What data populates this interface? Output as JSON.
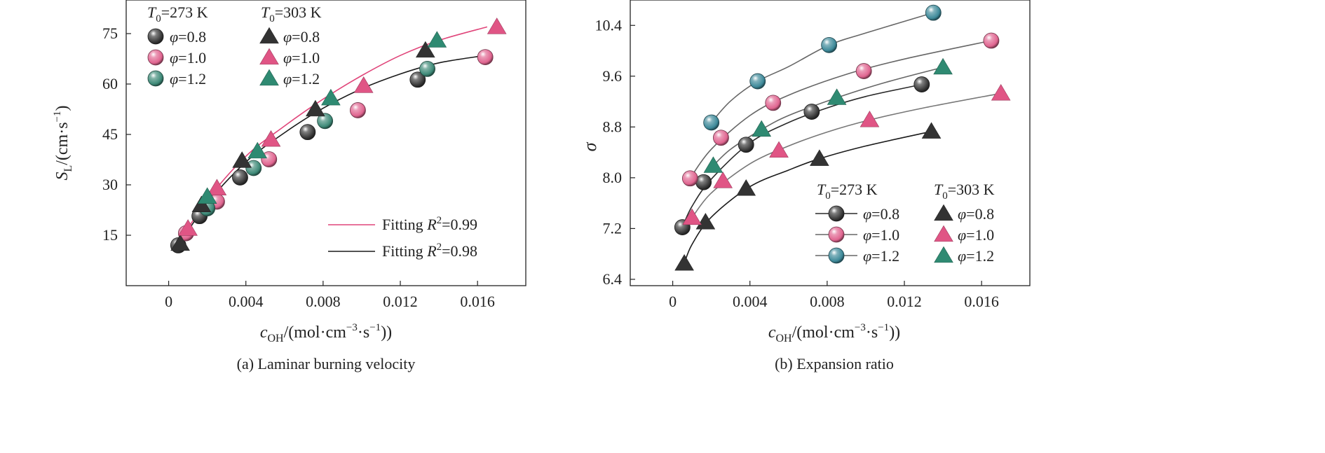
{
  "chart_data": [
    {
      "type": "scatter",
      "caption": "(a) Laminar burning velocity",
      "xlabel": {
        "sym": "c",
        "sub": "OH",
        "unit": "/(mol·cm",
        "e1": "−3",
        "mid": "·s",
        "e2": "−1",
        "end": "))"
      },
      "ylabel": {
        "sym": "S",
        "sub": "L",
        "unit": "/(cm·s",
        "e1": "−1",
        "end": ")"
      },
      "xlim": [
        -0.0022,
        0.0185
      ],
      "ylim": [
        0,
        85
      ],
      "xticks": [
        0,
        0.004,
        0.008,
        0.012,
        0.016
      ],
      "xtick_labels": [
        "0",
        "0.004",
        "0.008",
        "0.012",
        "0.016"
      ],
      "yticks": [
        15,
        30,
        45,
        60,
        75
      ],
      "ytick_labels": [
        "15",
        "30",
        "45",
        "60",
        "75"
      ],
      "legend_headers": [
        "273 K",
        "303 K"
      ],
      "legend_T_sym": "T",
      "legend_T_sub": "0",
      "legend_phi_sym": "φ",
      "series": [
        {
          "name": "=0.8",
          "T0": "273 K",
          "marker": "sphere",
          "color": "#3a3a3a",
          "x": [
            0.0005,
            0.0016,
            0.0037,
            0.0072,
            0.0129
          ],
          "y": [
            12,
            20.7,
            32.2,
            45.7,
            61.3
          ]
        },
        {
          "name": "=1.0",
          "T0": "273 K",
          "marker": "sphere",
          "color": "#e06590",
          "x": [
            0.0009,
            0.0025,
            0.0052,
            0.0098,
            0.0164
          ],
          "y": [
            15.6,
            25,
            37.6,
            52.2,
            68
          ]
        },
        {
          "name": "=1.2",
          "T0": "273 K",
          "marker": "sphere",
          "color": "#3e8a78",
          "x": [
            0.002,
            0.0044,
            0.0081,
            0.0134
          ],
          "y": [
            23,
            35,
            49,
            64.5
          ]
        },
        {
          "name": "=0.8",
          "T0": "303 K",
          "marker": "triangle",
          "color": "#333333",
          "x": [
            0.0006,
            0.0017,
            0.0038,
            0.0076,
            0.0133
          ],
          "y": [
            12.5,
            24,
            37.2,
            52.5,
            70
          ]
        },
        {
          "name": "=1.0",
          "T0": "303 K",
          "marker": "triangle",
          "color": "#e05585",
          "x": [
            0.001,
            0.0025,
            0.0053,
            0.0101,
            0.017
          ],
          "y": [
            17,
            29,
            43.5,
            59.5,
            77
          ]
        },
        {
          "name": "=1.2",
          "T0": "303 K",
          "marker": "triangle",
          "color": "#2f8a72",
          "x": [
            0.002,
            0.0046,
            0.0084,
            0.0139
          ],
          "y": [
            26.5,
            40,
            55.8,
            73
          ]
        }
      ],
      "fits": [
        {
          "label_pre": "Fitting ",
          "label_sym": "R",
          "label_sup": "2",
          "label_val": "=0.99",
          "color": "#e0457a",
          "x": [
            0.0005,
            0.002,
            0.004,
            0.006,
            0.008,
            0.01,
            0.012,
            0.014,
            0.0165
          ],
          "y": [
            12.5,
            25.5,
            38.5,
            47.5,
            55.5,
            62.5,
            68.5,
            73,
            77
          ]
        },
        {
          "label_pre": "Fitting ",
          "label_sym": "R",
          "label_sup": "2",
          "label_val": "=0.98",
          "color": "#1a1a1a",
          "x": [
            0.0005,
            0.002,
            0.004,
            0.006,
            0.008,
            0.01,
            0.012,
            0.014,
            0.0164
          ],
          "y": [
            11.8,
            24.5,
            36.8,
            45.5,
            52.8,
            58.6,
            63,
            66.3,
            68.5
          ]
        }
      ]
    },
    {
      "type": "scatter",
      "caption": "(b) Expansion ratio",
      "xlabel": {
        "sym": "c",
        "sub": "OH",
        "unit": "/(mol·cm",
        "e1": "−3",
        "mid": "·s",
        "e2": "−1",
        "end": "))"
      },
      "ylabel": {
        "sym": "σ"
      },
      "xlim": [
        -0.0022,
        0.0185
      ],
      "ylim": [
        6.3,
        10.8
      ],
      "xticks": [
        0,
        0.004,
        0.008,
        0.012,
        0.016
      ],
      "xtick_labels": [
        "0",
        "0.004",
        "0.008",
        "0.012",
        "0.016"
      ],
      "yticks": [
        6.4,
        7.2,
        8.0,
        8.8,
        9.6,
        10.4
      ],
      "ytick_labels": [
        "6.4",
        "7.2",
        "8.0",
        "8.8",
        "9.6",
        "10.4"
      ],
      "legend_headers": [
        "273 K",
        "303 K"
      ],
      "legend_T_sym": "T",
      "legend_T_sub": "0",
      "legend_phi_sym": "φ",
      "series": [
        {
          "name": "=0.8",
          "T0": "273 K",
          "marker": "sphere",
          "color": "#3a3a3a",
          "x": [
            0.0005,
            0.0016,
            0.0038,
            0.0072,
            0.0129
          ],
          "y": [
            7.22,
            7.93,
            8.52,
            9.04,
            9.47
          ]
        },
        {
          "name": "=1.0",
          "T0": "273 K",
          "marker": "sphere",
          "color": "#e06590",
          "x": [
            0.0009,
            0.0025,
            0.0052,
            0.0099,
            0.0165
          ],
          "y": [
            7.99,
            8.63,
            9.18,
            9.68,
            10.16
          ]
        },
        {
          "name": "=1.2",
          "T0": "273 K",
          "marker": "sphere",
          "color": "#3e8a9a",
          "x": [
            0.002,
            0.0044,
            0.0081,
            0.0135
          ],
          "y": [
            8.87,
            9.52,
            10.09,
            10.6
          ]
        },
        {
          "name": "=0.8",
          "T0": "303 K",
          "marker": "triangle",
          "color": "#333333",
          "x": [
            0.0006,
            0.0017,
            0.0038,
            0.0076,
            0.0134
          ],
          "y": [
            6.65,
            7.3,
            7.83,
            8.3,
            8.73
          ]
        },
        {
          "name": "=1.0",
          "T0": "303 K",
          "marker": "triangle",
          "color": "#e05585",
          "x": [
            0.001,
            0.0026,
            0.0055,
            0.0102,
            0.017
          ],
          "y": [
            7.37,
            7.95,
            8.43,
            8.91,
            9.33
          ]
        },
        {
          "name": "=1.2",
          "T0": "303 K",
          "marker": "triangle",
          "color": "#2f8a72",
          "x": [
            0.0021,
            0.0046,
            0.0085,
            0.014
          ],
          "y": [
            8.19,
            8.76,
            9.26,
            9.74
          ]
        }
      ],
      "fits": [
        {
          "color": "#2a2a2a",
          "x": [
            0.0005,
            0.001,
            0.002,
            0.004,
            0.006,
            0.008,
            0.01,
            0.0129
          ],
          "y": [
            7.22,
            7.55,
            7.98,
            8.55,
            8.87,
            9.1,
            9.28,
            9.47
          ]
        },
        {
          "color": "#666666",
          "x": [
            0.0009,
            0.002,
            0.004,
            0.006,
            0.009,
            0.012,
            0.0165
          ],
          "y": [
            7.99,
            8.45,
            8.98,
            9.3,
            9.63,
            9.87,
            10.16
          ]
        },
        {
          "color": "#666666",
          "x": [
            0.002,
            0.003,
            0.0044,
            0.006,
            0.0081,
            0.01,
            0.0135
          ],
          "y": [
            8.87,
            9.21,
            9.52,
            9.75,
            10.09,
            10.28,
            10.6
          ]
        },
        {
          "color": "#1a1a1a",
          "x": [
            0.0006,
            0.001,
            0.002,
            0.004,
            0.006,
            0.0076,
            0.01,
            0.0134
          ],
          "y": [
            6.65,
            6.95,
            7.38,
            7.86,
            8.12,
            8.3,
            8.5,
            8.73
          ]
        },
        {
          "color": "#777777",
          "x": [
            0.001,
            0.002,
            0.004,
            0.006,
            0.008,
            0.0102,
            0.013,
            0.017
          ],
          "y": [
            7.37,
            7.76,
            8.22,
            8.5,
            8.72,
            8.91,
            9.1,
            9.33
          ]
        },
        {
          "color": "#666666",
          "x": [
            0.0021,
            0.003,
            0.0046,
            0.006,
            0.0085,
            0.011,
            0.014
          ],
          "y": [
            8.19,
            8.45,
            8.76,
            8.98,
            9.26,
            9.5,
            9.74
          ]
        }
      ]
    }
  ]
}
